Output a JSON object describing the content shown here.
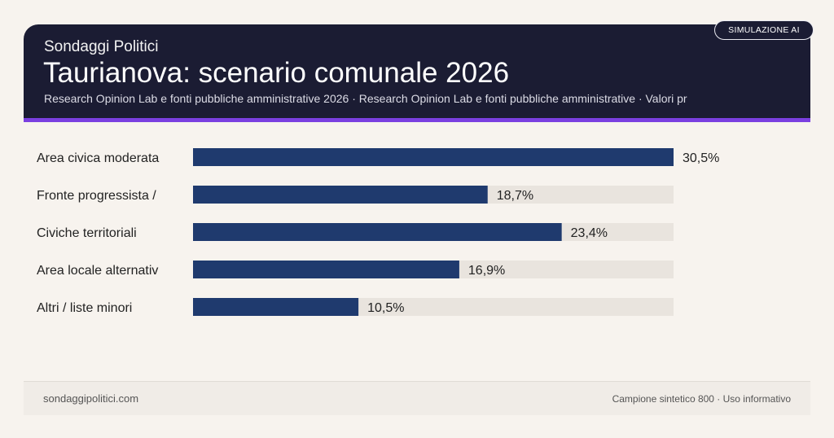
{
  "header": {
    "brand": "Sondaggi Politici",
    "title": "Taurianova: scenario comunale 2026",
    "subtitle": "Research Opinion Lab e fonti pubbliche amministrative 2026 · Research Opinion Lab e fonti pubbliche amministrative · Valori pr",
    "badge": "SIMULAZIONE AI"
  },
  "footer": {
    "site": "sondaggipolitici.com",
    "note": "Campione sintetico 800 · Uso informativo"
  },
  "colors": {
    "bar": "#1f3a6e",
    "track": "#e9e4de",
    "header_bg": "#1b1c33",
    "accent": "#7a3fe0"
  },
  "chart_data": {
    "type": "bar",
    "orientation": "horizontal",
    "categories": [
      "Area civica moderata",
      "Fronte progressista /",
      "Civiche territoriali",
      "Area locale alternativ",
      "Altri / liste minori"
    ],
    "values": [
      30.5,
      18.7,
      23.4,
      16.9,
      10.5
    ],
    "value_labels": [
      "30,5%",
      "18,7%",
      "23,4%",
      "16,9%",
      "10,5%"
    ],
    "xlim": [
      0,
      30.5
    ],
    "grid": false
  }
}
